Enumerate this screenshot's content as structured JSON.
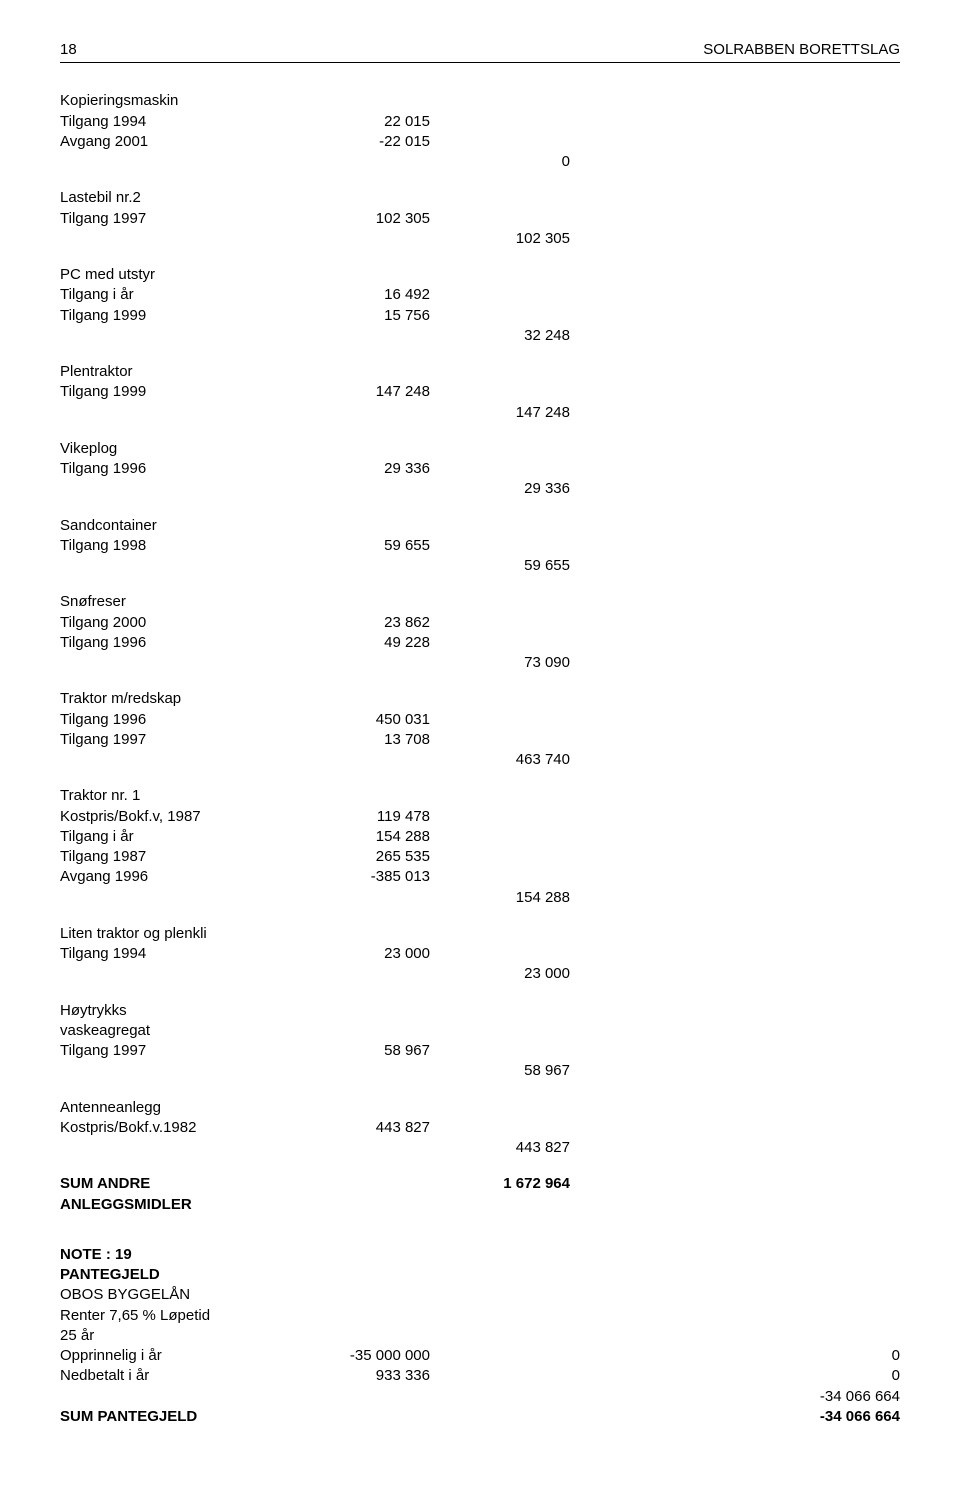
{
  "header": {
    "page": "18",
    "title": "SOLRABBEN BORETTSLAG"
  },
  "sections": {
    "kopi": {
      "title": "Kopieringsmaskin",
      "rows": [
        {
          "label": "Tilgang 1994",
          "v1": "22 015"
        },
        {
          "label": "Avgang 2001",
          "v1": "-22 015"
        }
      ],
      "sum": "0"
    },
    "lastebil": {
      "title": "Lastebil nr.2",
      "rows": [
        {
          "label": "Tilgang 1997",
          "v1": "102 305"
        }
      ],
      "sum": "102 305"
    },
    "pc": {
      "title": "PC med utstyr",
      "rows": [
        {
          "label": "Tilgang i år",
          "v1": "16 492"
        },
        {
          "label": "Tilgang 1999",
          "v1": "15 756"
        }
      ],
      "sum": "32 248"
    },
    "plen": {
      "title": "Plentraktor",
      "rows": [
        {
          "label": "Tilgang 1999",
          "v1": "147 248"
        }
      ],
      "sum": "147 248"
    },
    "vike": {
      "title": "Vikeplog",
      "rows": [
        {
          "label": "Tilgang 1996",
          "v1": "29 336"
        }
      ],
      "sum": "29 336"
    },
    "sand": {
      "title": "Sandcontainer",
      "rows": [
        {
          "label": "Tilgang 1998",
          "v1": "59 655"
        }
      ],
      "sum": "59 655"
    },
    "snofreser": {
      "title": "Snøfreser",
      "rows": [
        {
          "label": "Tilgang 2000",
          "v1": "23 862"
        },
        {
          "label": "Tilgang 1996",
          "v1": "49 228"
        }
      ],
      "sum": "73 090"
    },
    "traktorred": {
      "title": "Traktor m/redskap",
      "rows": [
        {
          "label": "Tilgang 1996",
          "v1": "450 031"
        },
        {
          "label": "Tilgang 1997",
          "v1": "13 708"
        }
      ],
      "sum": "463 740"
    },
    "traktor1": {
      "title": "Traktor nr. 1",
      "rows": [
        {
          "label": "Kostpris/Bokf.v, 1987",
          "v1": "119 478"
        },
        {
          "label": "Tilgang i år",
          "v1": "154 288"
        },
        {
          "label": "Tilgang 1987",
          "v1": "265 535"
        },
        {
          "label": "Avgang 1996",
          "v1": "-385 013"
        }
      ],
      "sum": "154 288"
    },
    "litentraktor": {
      "title": "Liten traktor og plenkli",
      "rows": [
        {
          "label": "Tilgang 1994",
          "v1": "23 000"
        }
      ],
      "sum": "23 000"
    },
    "hoytrykk": {
      "title1": "Høytrykks",
      "title2": "vaskeagregat",
      "rows": [
        {
          "label": "Tilgang 1997",
          "v1": "58 967"
        }
      ],
      "sum": "58 967"
    },
    "antenne": {
      "title": "Antenneanlegg",
      "rows": [
        {
          "label": "Kostpris/Bokf.v.1982",
          "v1": "443 827"
        }
      ],
      "sum": "443 827"
    },
    "sumandre": {
      "label1": "SUM ANDRE",
      "label2": "ANLEGGSMIDLER",
      "value": "1 672 964"
    }
  },
  "note19": {
    "title": "NOTE : 19",
    "subtitle": "PANTEGJELD",
    "line1": "OBOS BYGGELÅN",
    "line2": "Renter 7,65 % Løpetid",
    "line3": "25 år",
    "rows": [
      {
        "label": "Opprinnelig i år",
        "v1": "-35 000 000",
        "v3": "0"
      },
      {
        "label": "Nedbetalt i år",
        "v1": "933 336",
        "v3": "0"
      }
    ],
    "intermed": "-34 066 664",
    "sumlabel": "SUM PANTEGJELD",
    "sumvalue": "-34 066 664"
  }
}
